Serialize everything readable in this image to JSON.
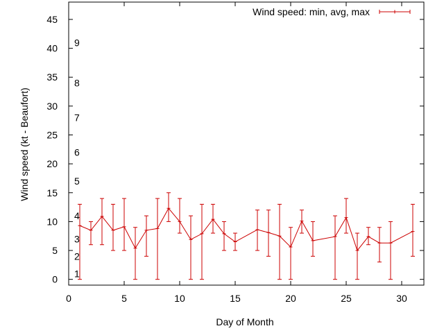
{
  "chart_data": {
    "type": "line",
    "xlabel": "Day of Month",
    "ylabel": "Wind speed (kt - Beaufort)",
    "xlim": [
      0,
      32
    ],
    "ylim": [
      -1,
      48
    ],
    "x_ticks": [
      0,
      5,
      10,
      15,
      20,
      25,
      30
    ],
    "y_ticks": [
      0,
      5,
      10,
      15,
      20,
      25,
      30,
      35,
      40,
      45
    ],
    "grid": false,
    "legend_position": "top-right",
    "beaufort_scale": [
      {
        "label": "1",
        "y": 1
      },
      {
        "label": "2",
        "y": 4
      },
      {
        "label": "3",
        "y": 7
      },
      {
        "label": "4",
        "y": 11
      },
      {
        "label": "5",
        "y": 17
      },
      {
        "label": "6",
        "y": 22
      },
      {
        "label": "7",
        "y": 28
      },
      {
        "label": "8",
        "y": 34
      },
      {
        "label": "9",
        "y": 41
      }
    ],
    "series": [
      {
        "name": "Wind speed: min, avg, max",
        "color": "#cc0000",
        "points": [
          {
            "x": 1,
            "y": 9.3,
            "min": 0,
            "max": 13
          },
          {
            "x": 2,
            "y": 8.5,
            "min": 6,
            "max": 10
          },
          {
            "x": 3,
            "y": 10.9,
            "min": 6,
            "max": 14
          },
          {
            "x": 4,
            "y": 8.5,
            "min": 5,
            "max": 13
          },
          {
            "x": 5,
            "y": 9.1,
            "min": 5,
            "max": 14
          },
          {
            "x": 6,
            "y": 5.4,
            "min": 0,
            "max": 9
          },
          {
            "x": 7,
            "y": 8.5,
            "min": 4,
            "max": 11
          },
          {
            "x": 8,
            "y": 8.8,
            "min": 0,
            "max": 14
          },
          {
            "x": 9,
            "y": 12.3,
            "min": 10,
            "max": 15
          },
          {
            "x": 10,
            "y": 10.0,
            "min": 8,
            "max": 14
          },
          {
            "x": 11,
            "y": 6.9,
            "min": 0,
            "max": 11
          },
          {
            "x": 12,
            "y": 7.9,
            "min": 0,
            "max": 13
          },
          {
            "x": 13,
            "y": 10.4,
            "min": 8,
            "max": 13
          },
          {
            "x": 14,
            "y": 7.9,
            "min": 5,
            "max": 10
          },
          {
            "x": 15,
            "y": 6.5,
            "min": 5,
            "max": 8
          },
          {
            "x": 17,
            "y": 8.6,
            "min": 5,
            "max": 12
          },
          {
            "x": 18,
            "y": 8.1,
            "min": 4,
            "max": 12
          },
          {
            "x": 19,
            "y": 7.5,
            "min": 0,
            "max": 13
          },
          {
            "x": 20,
            "y": 5.6,
            "min": 0,
            "max": 9
          },
          {
            "x": 21,
            "y": 10.1,
            "min": 8,
            "max": 12
          },
          {
            "x": 22,
            "y": 6.7,
            "min": 4,
            "max": 10
          },
          {
            "x": 24,
            "y": 7.4,
            "min": 0,
            "max": 11
          },
          {
            "x": 25,
            "y": 10.7,
            "min": 8,
            "max": 14
          },
          {
            "x": 26,
            "y": 5.0,
            "min": 0,
            "max": 8
          },
          {
            "x": 27,
            "y": 7.4,
            "min": 6,
            "max": 9
          },
          {
            "x": 28,
            "y": 6.3,
            "min": 3,
            "max": 9
          },
          {
            "x": 29,
            "y": 6.3,
            "min": 0,
            "max": 10
          },
          {
            "x": 31,
            "y": 8.3,
            "min": 4,
            "max": 13
          }
        ]
      }
    ]
  }
}
